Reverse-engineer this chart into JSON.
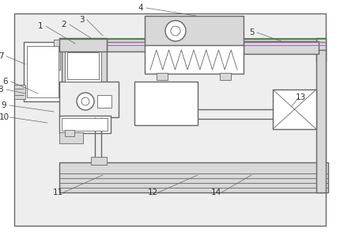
{
  "bg_color": "#ffffff",
  "line_color": "#666666",
  "lw": 1.0,
  "tlw": 0.6,
  "label_color": "#333333",
  "gray_fill": "#d8d8d8",
  "light_gray": "#eeeeee",
  "white": "#ffffff",
  "green_line": "#3a8a3a",
  "purple_line": "#9966aa",
  "leader_data": [
    [
      "1",
      95,
      248,
      58,
      270
    ],
    [
      "2",
      115,
      255,
      88,
      272
    ],
    [
      "3",
      130,
      258,
      110,
      278
    ],
    [
      "4",
      248,
      283,
      185,
      293
    ],
    [
      "5",
      358,
      250,
      325,
      262
    ],
    [
      "6",
      48,
      185,
      14,
      200
    ],
    [
      "7",
      32,
      222,
      8,
      232
    ],
    [
      "8",
      32,
      185,
      8,
      190
    ],
    [
      "9",
      68,
      162,
      12,
      170
    ],
    [
      "10",
      60,
      148,
      12,
      155
    ],
    [
      "11",
      130,
      82,
      80,
      60
    ],
    [
      "12",
      250,
      82,
      200,
      60
    ],
    [
      "13",
      368,
      168,
      378,
      180
    ],
    [
      "14",
      318,
      82,
      280,
      60
    ]
  ]
}
